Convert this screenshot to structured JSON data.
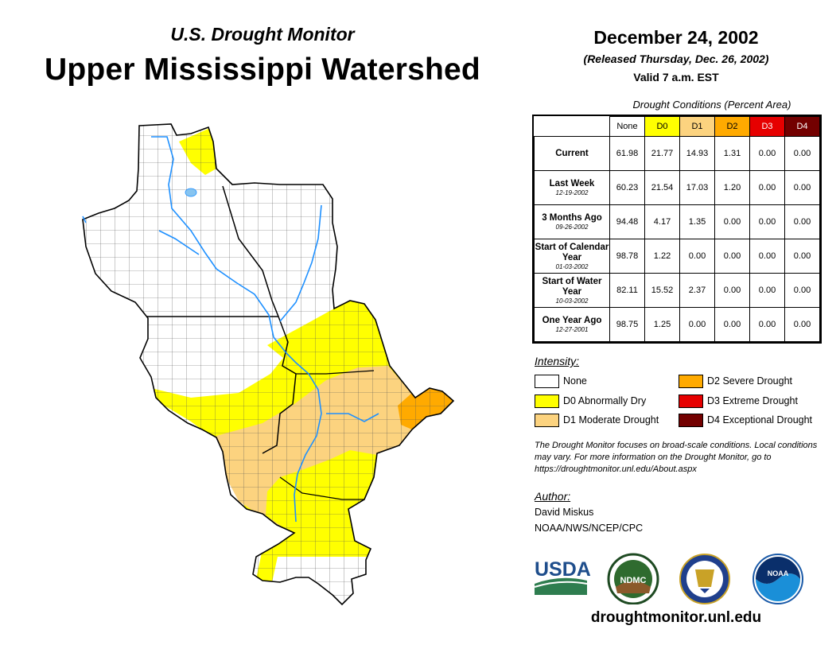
{
  "header": {
    "subtitle": "U.S. Drought Monitor",
    "title": "Upper Mississippi Watershed",
    "date": "December 24, 2002",
    "released": "(Released Thursday, Dec. 26, 2002)",
    "valid": "Valid 7 a.m. EST"
  },
  "table": {
    "heading": "Drought Conditions (Percent Area)",
    "columns": [
      "None",
      "D0",
      "D1",
      "D2",
      "D3",
      "D4"
    ],
    "rows": [
      {
        "label": "Current",
        "date": "",
        "values": [
          "61.98",
          "21.77",
          "14.93",
          "1.31",
          "0.00",
          "0.00"
        ]
      },
      {
        "label": "Last Week",
        "date": "12-19-2002",
        "values": [
          "60.23",
          "21.54",
          "17.03",
          "1.20",
          "0.00",
          "0.00"
        ]
      },
      {
        "label": "3 Months Ago",
        "date": "09-26-2002",
        "values": [
          "94.48",
          "4.17",
          "1.35",
          "0.00",
          "0.00",
          "0.00"
        ]
      },
      {
        "label": "Start of Calendar Year",
        "date": "01-03-2002",
        "values": [
          "98.78",
          "1.22",
          "0.00",
          "0.00",
          "0.00",
          "0.00"
        ]
      },
      {
        "label": "Start of Water Year",
        "date": "10-03-2002",
        "values": [
          "82.11",
          "15.52",
          "2.37",
          "0.00",
          "0.00",
          "0.00"
        ]
      },
      {
        "label": "One Year Ago",
        "date": "12-27-2001",
        "values": [
          "98.75",
          "1.25",
          "0.00",
          "0.00",
          "0.00",
          "0.00"
        ]
      }
    ]
  },
  "legend": {
    "title": "Intensity:",
    "items": [
      {
        "label": "None",
        "color": "#ffffff"
      },
      {
        "label": "D0 Abnormally Dry",
        "color": "#ffff00"
      },
      {
        "label": "D1 Moderate Drought",
        "color": "#fcd37f"
      },
      {
        "label": "D2 Severe Drought",
        "color": "#ffaa00"
      },
      {
        "label": "D3 Extreme Drought",
        "color": "#e60000"
      },
      {
        "label": "D4 Exceptional Drought",
        "color": "#730000"
      }
    ]
  },
  "note": "The Drought Monitor focuses on broad-scale conditions. Local conditions may vary. For more information on the Drought Monitor, go to https://droughtmonitor.unl.edu/About.aspx",
  "author": {
    "title": "Author:",
    "name": "David Miskus",
    "org": "NOAA/NWS/NCEP/CPC"
  },
  "logos": {
    "usda": "USDA",
    "ndmc": "NDMC",
    "noaa": "NOAA"
  },
  "website": "droughtmonitor.unl.edu",
  "colors": {
    "none": "#ffffff",
    "d0": "#ffff00",
    "d1": "#fcd37f",
    "d2": "#ffaa00",
    "d3": "#e60000",
    "d4": "#730000",
    "river": "#1e90ff",
    "lake": "#87c4f0"
  }
}
